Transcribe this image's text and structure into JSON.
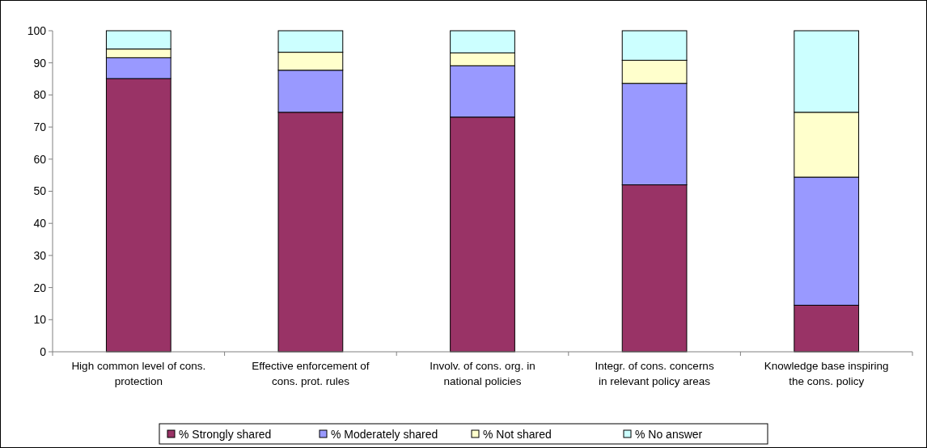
{
  "chart_data": {
    "type": "bar",
    "stacked": true,
    "categories": [
      "High common level of cons. protection",
      "Effective enforcement of cons. prot. rules",
      "Involv. of cons. org. in national policies",
      "Integr. of cons. concerns in relevant policy areas",
      "Knowledge base inspiring the cons. policy"
    ],
    "series": [
      {
        "name": "% Strongly shared",
        "color": "#993366",
        "values": [
          85.1,
          74.6,
          73.1,
          52.0,
          14.5
        ]
      },
      {
        "name": "% Moderately shared",
        "color": "#9999ff",
        "values": [
          6.5,
          13.1,
          16.0,
          31.6,
          39.9
        ]
      },
      {
        "name": "% Not shared",
        "color": "#ffffcc",
        "values": [
          2.7,
          5.6,
          4.0,
          7.2,
          20.2
        ]
      },
      {
        "name": "% No answer",
        "color": "#ccffff",
        "values": [
          5.7,
          6.7,
          6.9,
          9.2,
          25.4
        ]
      }
    ],
    "ylim": [
      0,
      100
    ],
    "yticks": [
      0,
      10,
      20,
      30,
      40,
      50,
      60,
      70,
      80,
      90,
      100
    ],
    "grid": false,
    "legend": "bottom"
  }
}
